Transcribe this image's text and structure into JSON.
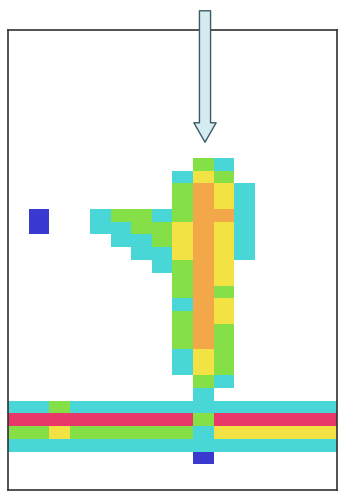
{
  "chart_data": {
    "type": "heatmap",
    "colors": [
      "#ffffff",
      "#3a3ad0",
      "#48d6d6",
      "#84e046",
      "#f2e244",
      "#f2a848",
      "#e8386a"
    ],
    "tick_labels": false,
    "cells": [
      [
        0,
        0,
        0,
        0,
        0,
        0,
        0,
        0,
        0,
        0,
        0,
        0,
        0,
        0,
        0,
        0
      ],
      [
        0,
        0,
        0,
        0,
        0,
        0,
        0,
        0,
        0,
        0,
        0,
        0,
        0,
        0,
        0,
        0
      ],
      [
        0,
        0,
        0,
        0,
        0,
        0,
        0,
        0,
        0,
        0,
        0,
        0,
        0,
        0,
        0,
        0
      ],
      [
        0,
        0,
        0,
        0,
        0,
        0,
        0,
        0,
        0,
        0,
        0,
        0,
        0,
        0,
        0,
        0
      ],
      [
        0,
        0,
        0,
        0,
        0,
        0,
        0,
        0,
        0,
        0,
        0,
        0,
        0,
        0,
        0,
        0
      ],
      [
        0,
        0,
        0,
        0,
        0,
        0,
        0,
        0,
        0,
        0,
        0,
        0,
        0,
        0,
        0,
        0
      ],
      [
        0,
        0,
        0,
        0,
        0,
        0,
        0,
        0,
        0,
        0,
        0,
        0,
        0,
        0,
        0,
        0
      ],
      [
        0,
        0,
        0,
        0,
        0,
        0,
        0,
        0,
        0,
        0,
        0,
        0,
        0,
        0,
        0,
        0
      ],
      [
        0,
        0,
        0,
        0,
        0,
        0,
        0,
        0,
        0,
        0,
        0,
        0,
        0,
        0,
        0,
        0
      ],
      [
        0,
        0,
        0,
        0,
        0,
        0,
        0,
        0,
        0,
        0,
        0,
        0,
        0,
        0,
        0,
        0
      ],
      [
        0,
        0,
        0,
        0,
        0,
        0,
        0,
        0,
        0,
        3,
        2,
        0,
        0,
        0,
        0,
        0
      ],
      [
        0,
        0,
        0,
        0,
        0,
        0,
        0,
        0,
        2,
        4,
        3,
        0,
        0,
        0,
        0,
        0
      ],
      [
        0,
        0,
        0,
        0,
        0,
        0,
        0,
        0,
        3,
        5,
        4,
        2,
        0,
        0,
        0,
        0
      ],
      [
        0,
        0,
        0,
        0,
        0,
        0,
        0,
        0,
        3,
        5,
        4,
        2,
        0,
        0,
        0,
        0
      ],
      [
        0,
        1,
        0,
        0,
        2,
        3,
        3,
        2,
        3,
        5,
        5,
        2,
        0,
        0,
        0,
        0
      ],
      [
        0,
        1,
        0,
        0,
        2,
        2,
        3,
        3,
        4,
        5,
        4,
        2,
        0,
        0,
        0,
        0
      ],
      [
        0,
        0,
        0,
        0,
        0,
        2,
        2,
        3,
        4,
        5,
        4,
        2,
        0,
        0,
        0,
        0
      ],
      [
        0,
        0,
        0,
        0,
        0,
        0,
        2,
        2,
        4,
        5,
        4,
        2,
        0,
        0,
        0,
        0
      ],
      [
        0,
        0,
        0,
        0,
        0,
        0,
        0,
        2,
        3,
        5,
        4,
        0,
        0,
        0,
        0,
        0
      ],
      [
        0,
        0,
        0,
        0,
        0,
        0,
        0,
        0,
        3,
        5,
        4,
        0,
        0,
        0,
        0,
        0
      ],
      [
        0,
        0,
        0,
        0,
        0,
        0,
        0,
        0,
        3,
        5,
        3,
        0,
        0,
        0,
        0,
        0
      ],
      [
        0,
        0,
        0,
        0,
        0,
        0,
        0,
        0,
        2,
        5,
        4,
        0,
        0,
        0,
        0,
        0
      ],
      [
        0,
        0,
        0,
        0,
        0,
        0,
        0,
        0,
        3,
        5,
        4,
        0,
        0,
        0,
        0,
        0
      ],
      [
        0,
        0,
        0,
        0,
        0,
        0,
        0,
        0,
        3,
        5,
        3,
        0,
        0,
        0,
        0,
        0
      ],
      [
        0,
        0,
        0,
        0,
        0,
        0,
        0,
        0,
        3,
        5,
        3,
        0,
        0,
        0,
        0,
        0
      ],
      [
        0,
        0,
        0,
        0,
        0,
        0,
        0,
        0,
        2,
        4,
        3,
        0,
        0,
        0,
        0,
        0
      ],
      [
        0,
        0,
        0,
        0,
        0,
        0,
        0,
        0,
        2,
        4,
        3,
        0,
        0,
        0,
        0,
        0
      ],
      [
        0,
        0,
        0,
        0,
        0,
        0,
        0,
        0,
        0,
        3,
        2,
        0,
        0,
        0,
        0,
        0
      ],
      [
        0,
        0,
        0,
        0,
        0,
        0,
        0,
        0,
        0,
        2,
        0,
        0,
        0,
        0,
        0,
        0
      ],
      [
        2,
        2,
        3,
        2,
        2,
        2,
        2,
        2,
        2,
        2,
        2,
        2,
        2,
        2,
        2,
        2
      ],
      [
        6,
        6,
        6,
        6,
        6,
        6,
        6,
        6,
        6,
        3,
        6,
        6,
        6,
        6,
        6,
        6
      ],
      [
        3,
        3,
        4,
        3,
        3,
        3,
        3,
        3,
        3,
        2,
        4,
        4,
        4,
        4,
        4,
        4
      ],
      [
        2,
        2,
        2,
        2,
        2,
        2,
        2,
        2,
        2,
        2,
        2,
        2,
        2,
        2,
        2,
        2
      ],
      [
        0,
        0,
        0,
        0,
        0,
        0,
        0,
        0,
        0,
        1,
        0,
        0,
        0,
        0,
        0,
        0
      ],
      [
        0,
        0,
        0,
        0,
        0,
        0,
        0,
        0,
        0,
        0,
        0,
        0,
        0,
        0,
        0,
        0
      ],
      [
        0,
        0,
        0,
        0,
        0,
        0,
        0,
        0,
        0,
        0,
        0,
        0,
        0,
        0,
        0,
        0
      ]
    ]
  }
}
